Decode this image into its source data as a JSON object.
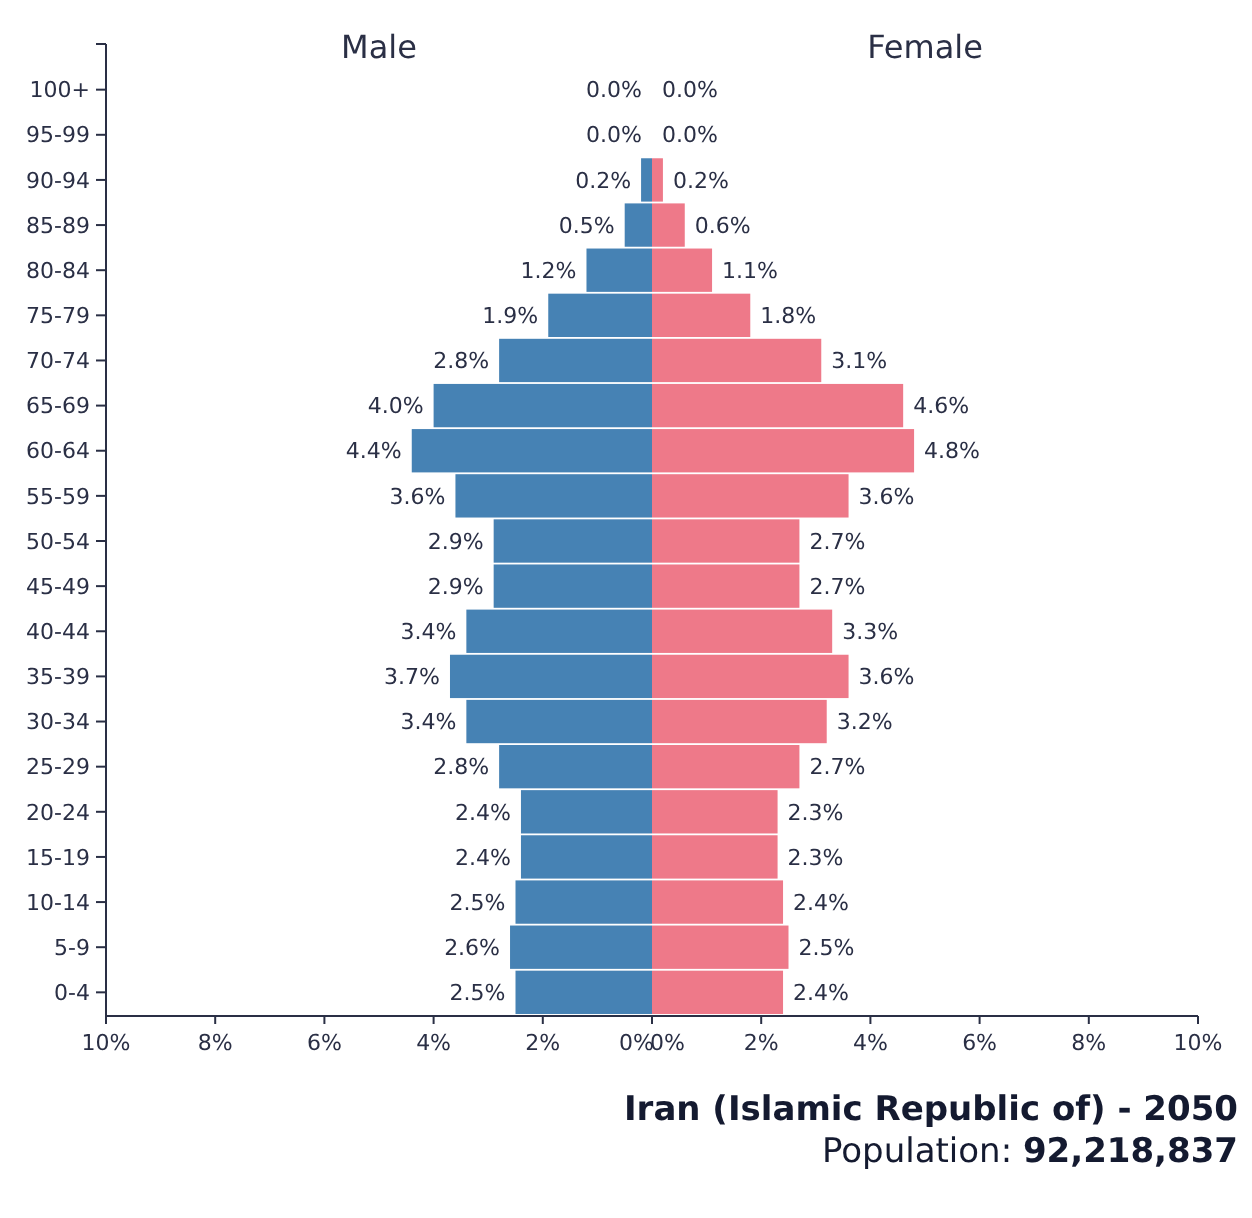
{
  "chart_data": [
    {
      "type": "bar",
      "orientation": "horizontal",
      "title": "Male",
      "categories": [
        "100+",
        "95-99",
        "90-94",
        "85-89",
        "80-84",
        "75-79",
        "70-74",
        "65-69",
        "60-64",
        "55-59",
        "50-54",
        "45-49",
        "40-44",
        "35-39",
        "30-34",
        "25-29",
        "20-24",
        "15-19",
        "10-14",
        "5-9",
        "0-4"
      ],
      "series": [
        {
          "color": "#4682b4",
          "values": [
            0.0,
            0.0,
            0.2,
            0.5,
            1.2,
            1.9,
            2.8,
            4.0,
            4.4,
            3.6,
            2.9,
            2.9,
            3.4,
            3.7,
            3.4,
            2.8,
            2.4,
            2.4,
            2.5,
            2.6,
            2.5
          ],
          "value_labels": [
            "0.0%",
            "0.0%",
            "0.2%",
            "0.5%",
            "1.2%",
            "1.9%",
            "2.8%",
            "4.0%",
            "4.4%",
            "3.6%",
            "2.9%",
            "2.9%",
            "3.4%",
            "3.7%",
            "3.4%",
            "2.8%",
            "2.4%",
            "2.4%",
            "2.5%",
            "2.6%",
            "2.5%"
          ]
        }
      ],
      "xlim": [
        10,
        0
      ],
      "xticks": [
        {
          "value": 10,
          "label": "10%"
        },
        {
          "value": 8,
          "label": "8%"
        },
        {
          "value": 6,
          "label": "6%"
        },
        {
          "value": 4,
          "label": "4%"
        },
        {
          "value": 2,
          "label": "2%"
        },
        {
          "value": 0,
          "label": "0%"
        }
      ]
    },
    {
      "type": "bar",
      "orientation": "horizontal",
      "title": "Female",
      "tick_labels": "x",
      "series": [
        {
          "color": "#ee7989",
          "values": [
            0.0,
            0.0,
            0.2,
            0.6,
            1.1,
            1.8,
            3.1,
            4.6,
            4.8,
            3.6,
            2.7,
            2.7,
            3.3,
            3.6,
            3.2,
            2.7,
            2.3,
            2.3,
            2.4,
            2.5,
            2.4
          ],
          "value_labels": [
            "0.0%",
            "0.0%",
            "0.2%",
            "0.6%",
            "1.1%",
            "1.8%",
            "3.1%",
            "4.6%",
            "4.8%",
            "3.6%",
            "2.7%",
            "2.7%",
            "3.3%",
            "3.6%",
            "3.2%",
            "2.7%",
            "2.3%",
            "2.3%",
            "2.4%",
            "2.5%",
            "2.4%"
          ]
        }
      ],
      "xlim": [
        0,
        10
      ],
      "xticks": [
        {
          "value": 0,
          "label": "0%"
        },
        {
          "value": 2,
          "label": "2%"
        },
        {
          "value": 4,
          "label": "4%"
        },
        {
          "value": 6,
          "label": "6%"
        },
        {
          "value": 8,
          "label": "8%"
        },
        {
          "value": 10,
          "label": "10%"
        }
      ],
      "annotations": [
        "Iran (Islamic Republic of) - 2050",
        "Population: 92,218,837"
      ]
    }
  ]
}
